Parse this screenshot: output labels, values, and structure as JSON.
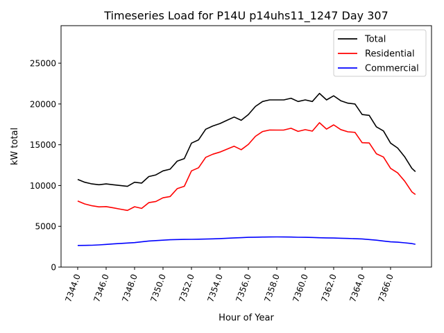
{
  "chart_data": {
    "type": "line",
    "title": "Timeseries Load for P14U p14uhs11_1247  Day 307",
    "xlabel": "Hour of Year",
    "ylabel": "kW total",
    "xlim": [
      7342.83,
      7368.88
    ],
    "ylim": [
      0,
      29600
    ],
    "xticks": [
      7344,
      7346,
      7348,
      7350,
      7352,
      7354,
      7356,
      7358,
      7360,
      7362,
      7364,
      7366
    ],
    "xtick_labels": [
      "7344.0",
      "7346.0",
      "7348.0",
      "7350.0",
      "7352.0",
      "7354.0",
      "7356.0",
      "7358.0",
      "7360.0",
      "7362.0",
      "7364.0",
      "7366.0"
    ],
    "yticks": [
      0,
      5000,
      10000,
      15000,
      20000,
      25000
    ],
    "ytick_labels": [
      "0",
      "5000",
      "10000",
      "15000",
      "20000",
      "25000"
    ],
    "grid": false,
    "legend_position": "top-right",
    "x": [
      7344,
      7344.5,
      7345,
      7345.5,
      7346,
      7346.5,
      7347,
      7347.5,
      7348,
      7348.5,
      7349,
      7349.5,
      7350,
      7350.5,
      7351,
      7351.5,
      7352,
      7352.5,
      7353,
      7353.5,
      7354,
      7354.5,
      7355,
      7355.5,
      7356,
      7356.5,
      7357,
      7357.5,
      7358,
      7358.5,
      7359,
      7359.5,
      7360,
      7360.5,
      7361,
      7361.5,
      7362,
      7362.5,
      7363,
      7363.5,
      7364,
      7364.5,
      7365,
      7365.5,
      7366,
      7366.5,
      7367,
      7367.5,
      7367.75
    ],
    "series": [
      {
        "name": "Total",
        "color": "#000000",
        "values": [
          10750,
          10400,
          10200,
          10100,
          10200,
          10100,
          10000,
          9900,
          10400,
          10300,
          11100,
          11300,
          11800,
          12000,
          13000,
          13300,
          15200,
          15600,
          16900,
          17300,
          17600,
          18000,
          18400,
          18000,
          18700,
          19700,
          20300,
          20500,
          20500,
          20500,
          20700,
          20300,
          20500,
          20300,
          21300,
          20500,
          21000,
          20400,
          20100,
          20000,
          18700,
          18600,
          17200,
          16700,
          15200,
          14600,
          13500,
          12100,
          11700
        ]
      },
      {
        "name": "Residential",
        "color": "#ff0000",
        "values": [
          8100,
          7740,
          7520,
          7380,
          7420,
          7260,
          7100,
          6950,
          7400,
          7200,
          7900,
          8050,
          8500,
          8650,
          9620,
          9910,
          11800,
          12180,
          13460,
          13840,
          14100,
          14460,
          14820,
          14390,
          15050,
          16030,
          16620,
          16810,
          16800,
          16810,
          17020,
          16640,
          16850,
          16670,
          17700,
          16920,
          17440,
          16860,
          16590,
          16520,
          15250,
          15220,
          13900,
          13500,
          12100,
          11550,
          10520,
          9220,
          8900
        ]
      },
      {
        "name": "Commercial",
        "color": "#0000ff",
        "values": [
          2650,
          2660,
          2680,
          2720,
          2780,
          2840,
          2900,
          2950,
          3000,
          3100,
          3200,
          3250,
          3300,
          3350,
          3380,
          3390,
          3400,
          3420,
          3440,
          3460,
          3500,
          3540,
          3580,
          3610,
          3650,
          3670,
          3680,
          3690,
          3700,
          3690,
          3680,
          3660,
          3650,
          3630,
          3600,
          3580,
          3560,
          3540,
          3510,
          3480,
          3450,
          3380,
          3300,
          3200,
          3100,
          3050,
          2980,
          2880,
          2800
        ]
      }
    ]
  }
}
